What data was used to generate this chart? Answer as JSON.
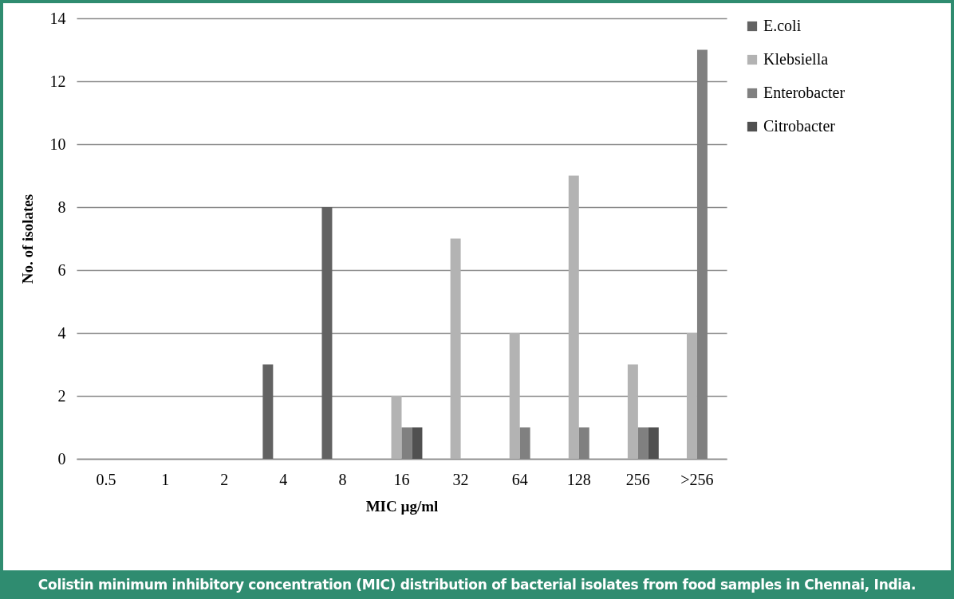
{
  "chart_data": {
    "type": "bar",
    "xlabel": "MIC µg/ml",
    "ylabel": "No. of isolates",
    "categories": [
      "0.5",
      "1",
      "2",
      "4",
      "8",
      "16",
      "32",
      "64",
      "128",
      "256",
      ">256"
    ],
    "series": [
      {
        "name": "E.coli",
        "color": "#626262",
        "values": [
          0,
          0,
          0,
          3,
          8,
          0,
          0,
          0,
          0,
          0,
          0
        ]
      },
      {
        "name": "Klebsiella",
        "color": "#b3b3b3",
        "values": [
          0,
          0,
          0,
          0,
          0,
          2,
          7,
          4,
          9,
          3,
          4
        ]
      },
      {
        "name": "Enterobacter",
        "color": "#808080",
        "values": [
          0,
          0,
          0,
          0,
          0,
          1,
          0,
          1,
          1,
          1,
          13
        ]
      },
      {
        "name": "Citrobacter",
        "color": "#505050",
        "values": [
          0,
          0,
          0,
          0,
          0,
          1,
          0,
          0,
          0,
          1,
          0
        ]
      }
    ],
    "ylim": [
      0,
      14
    ],
    "yticks": [
      0,
      2,
      4,
      6,
      8,
      10,
      12,
      14
    ],
    "grid": "y",
    "legend": "right",
    "annotations": [
      "Colistin minimum inhibitory concentration (MIC) distribution of bacterial isolates from food samples in Chennai, India."
    ]
  }
}
